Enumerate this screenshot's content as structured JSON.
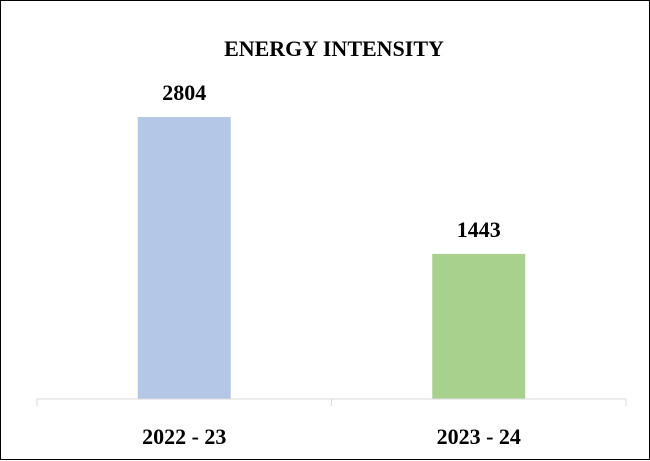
{
  "chart_data": {
    "type": "bar",
    "title": "ENERGY INTENSITY",
    "categories": [
      "2022 - 23",
      "2023 - 24"
    ],
    "values": [
      2804,
      1443
    ],
    "bar_colors": [
      "#b4c7e7",
      "#a9d18e"
    ],
    "data_labels": [
      "2804",
      "1443"
    ],
    "xlabel": "",
    "ylabel": "",
    "ylim": [
      0,
      3000
    ],
    "grid": false,
    "legend": "none",
    "axis_color": "#d9d9d9"
  }
}
